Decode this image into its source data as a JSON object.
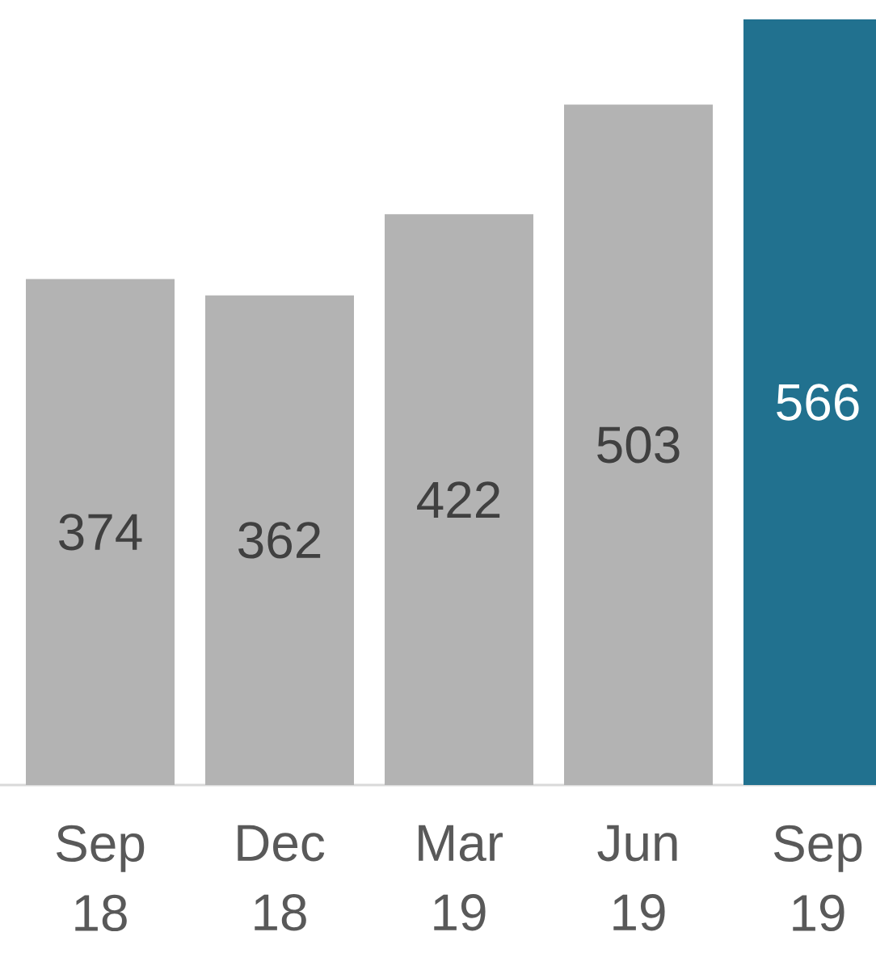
{
  "chart_data": {
    "type": "bar",
    "categories": [
      "Sep 18",
      "Dec 18",
      "Mar 19",
      "Jun 19",
      "Sep 19"
    ],
    "values": [
      374,
      362,
      422,
      503,
      566
    ],
    "colors": [
      "#b3b3b3",
      "#b3b3b3",
      "#b3b3b3",
      "#b3b3b3",
      "#21718f"
    ],
    "data_labels": true
  }
}
